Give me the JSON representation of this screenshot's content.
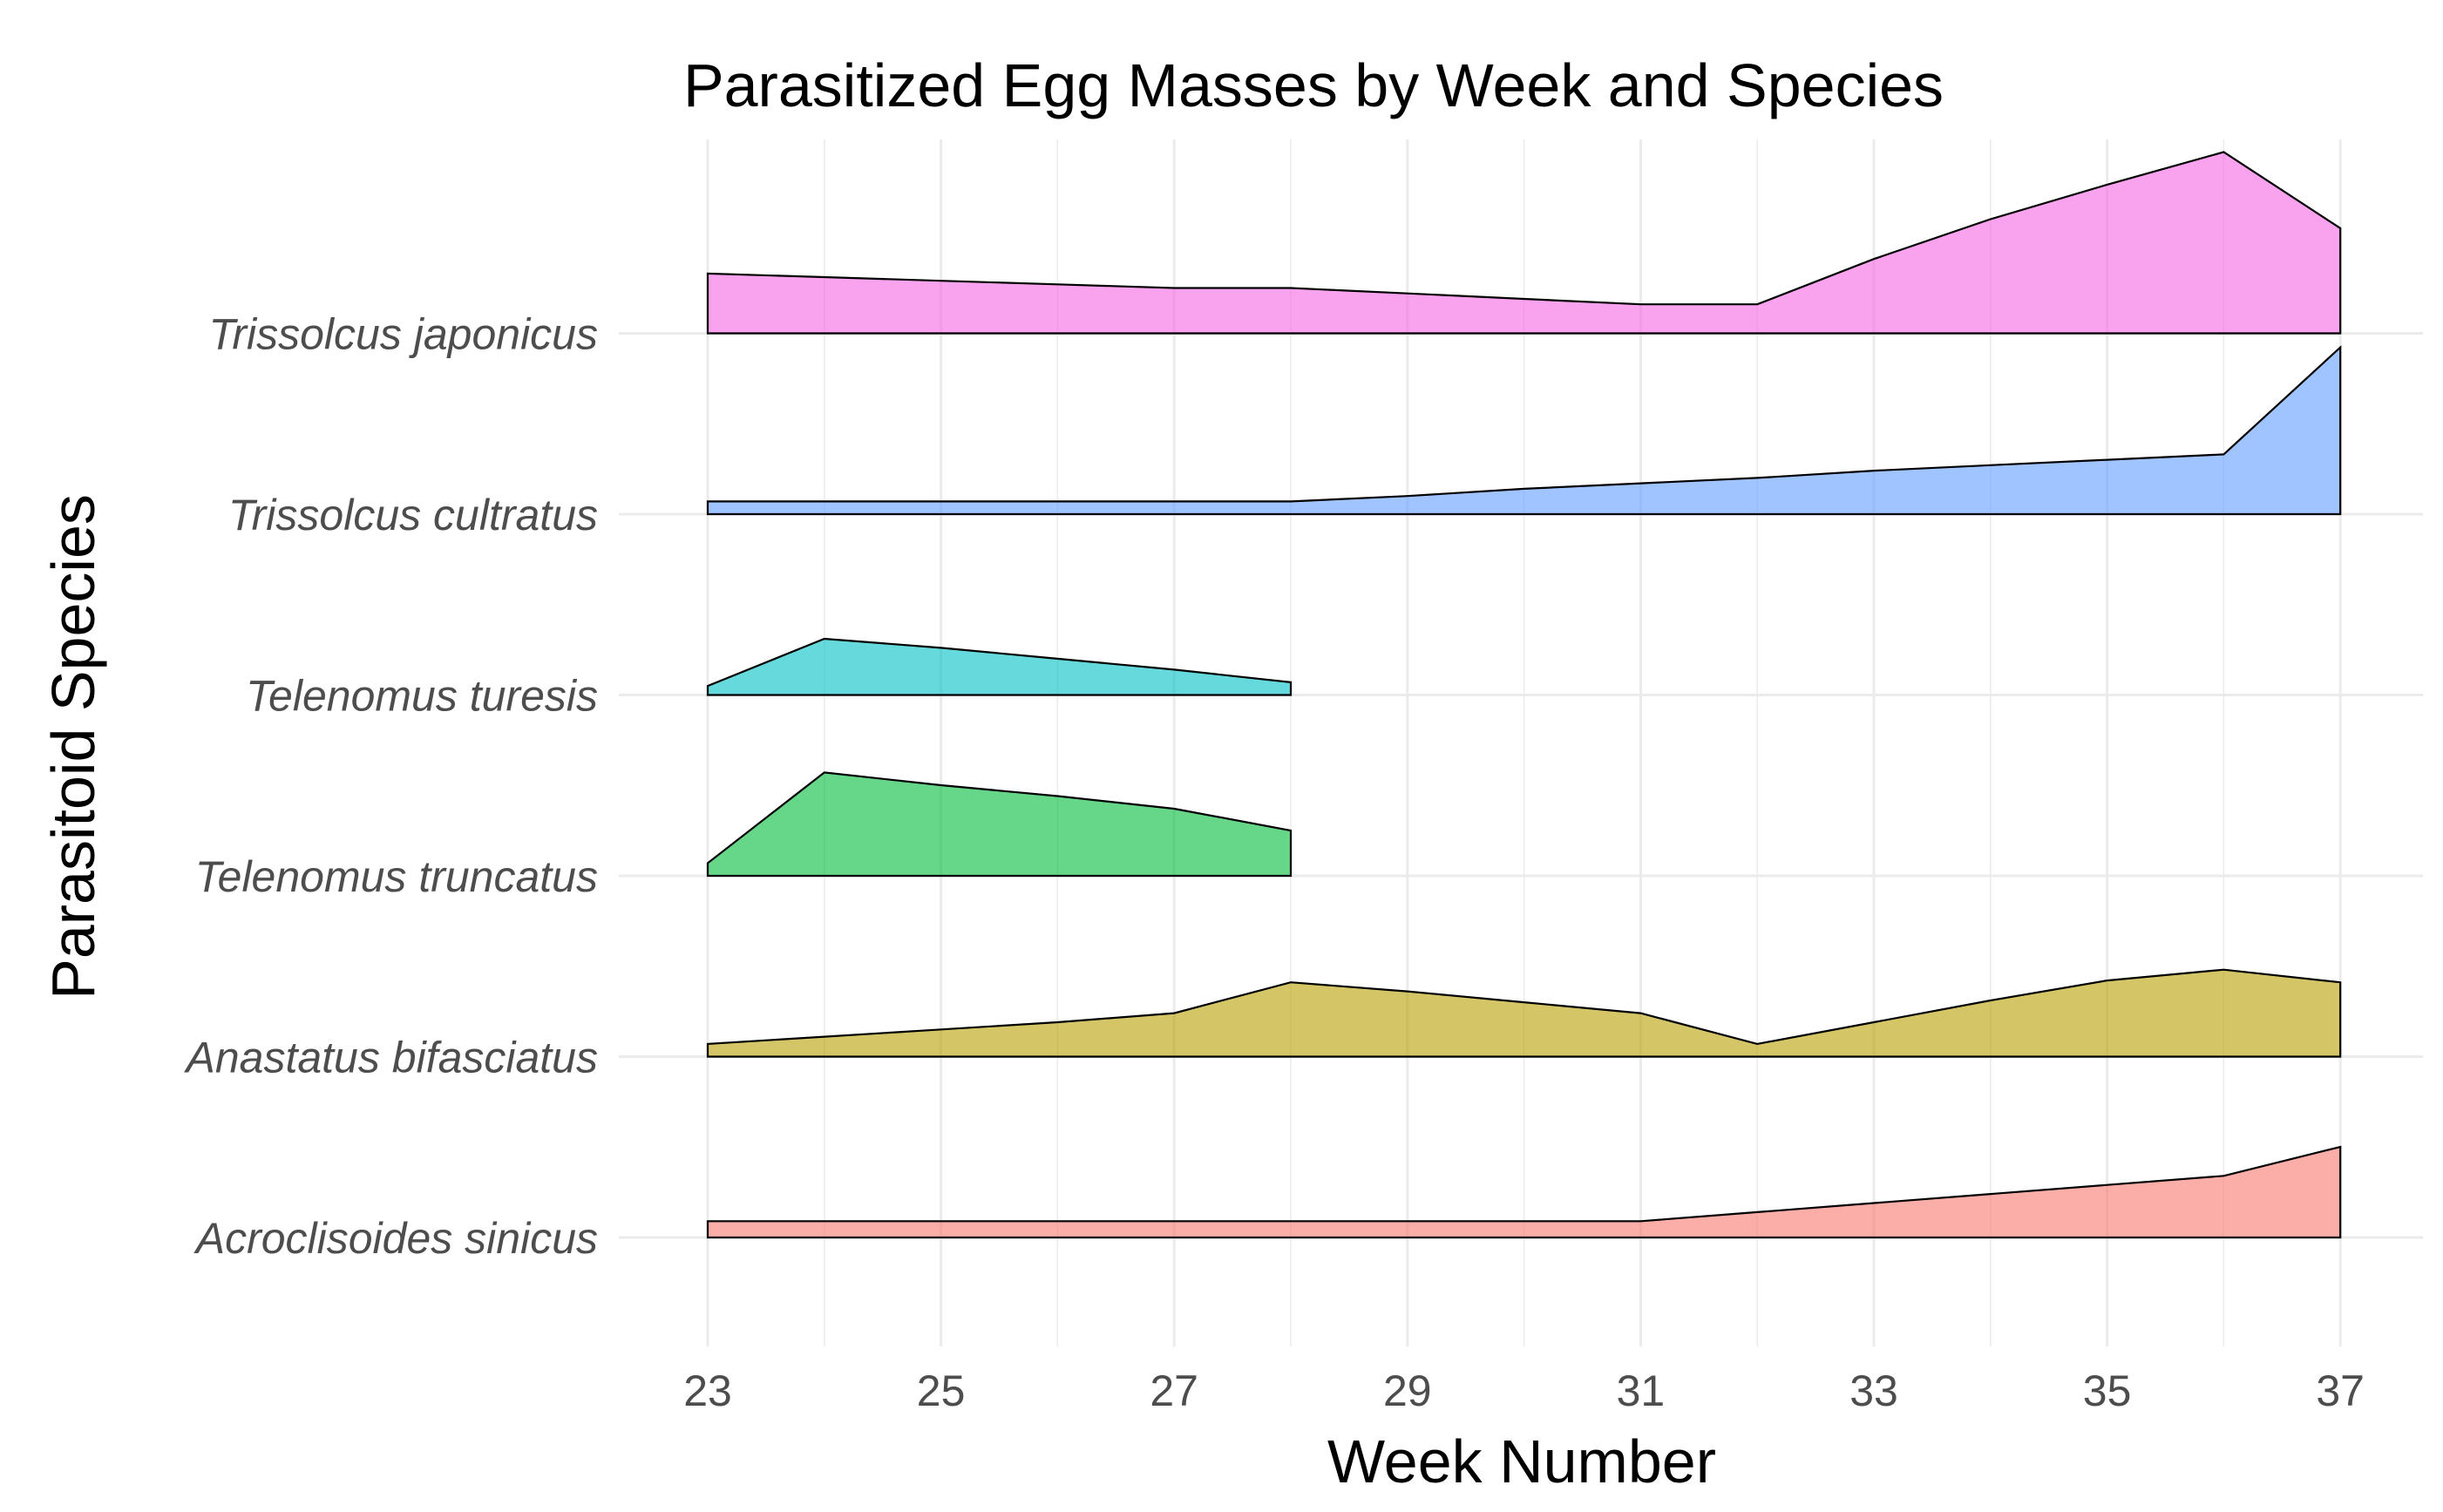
{
  "chart_data": {
    "type": "area",
    "subtype": "ridgeline",
    "title": "Parasitized Egg Masses by Week and Species",
    "xlabel": "Week Number",
    "ylabel": "Parasitoid Species",
    "xlim": [
      22.3,
      37.3
    ],
    "x_ticks": [
      "23",
      "25",
      "27",
      "29",
      "31",
      "33",
      "35",
      "37"
    ],
    "x_tick_values": [
      23,
      25,
      27,
      29,
      31,
      33,
      35,
      37
    ],
    "grid": true,
    "legend": "none",
    "series": [
      {
        "name": "Acroclisoides sinicus",
        "color": "#F8766D",
        "x": [
          23,
          24,
          25,
          26,
          27,
          28,
          29,
          30,
          31,
          32,
          33,
          34,
          35,
          36,
          37
        ],
        "values": [
          0.09,
          0.09,
          0.09,
          0.09,
          0.09,
          0.09,
          0.09,
          0.09,
          0.09,
          0.14,
          0.19,
          0.24,
          0.29,
          0.34,
          0.5
        ]
      },
      {
        "name": "Anastatus bifasciatus",
        "color": "#B79F00",
        "x": [
          23,
          24,
          25,
          26,
          27,
          28,
          29,
          30,
          31,
          32,
          33,
          34,
          35,
          36,
          37
        ],
        "values": [
          0.07,
          0.11,
          0.15,
          0.19,
          0.24,
          0.41,
          0.36,
          0.3,
          0.24,
          0.07,
          0.19,
          0.31,
          0.42,
          0.48,
          0.41
        ]
      },
      {
        "name": "Telenomus truncatus",
        "color": "#00BA38",
        "x": [
          23,
          24,
          25,
          26,
          27,
          28
        ],
        "values": [
          0.07,
          0.57,
          0.5,
          0.44,
          0.37,
          0.25
        ]
      },
      {
        "name": "Telenomus turesis",
        "color": "#00BFC4",
        "x": [
          23,
          24,
          25,
          26,
          27,
          28
        ],
        "values": [
          0.05,
          0.31,
          0.26,
          0.2,
          0.14,
          0.07
        ]
      },
      {
        "name": "Trissolcus cultratus",
        "color": "#619CFF",
        "x": [
          23,
          24,
          25,
          26,
          27,
          28,
          29,
          30,
          31,
          32,
          33,
          34,
          35,
          36,
          37
        ],
        "values": [
          0.07,
          0.07,
          0.07,
          0.07,
          0.07,
          0.07,
          0.1,
          0.14,
          0.17,
          0.2,
          0.24,
          0.27,
          0.3,
          0.33,
          0.92
        ]
      },
      {
        "name": "Trissolcus japonicus",
        "color": "#F564E3",
        "x": [
          23,
          24,
          25,
          26,
          27,
          28,
          29,
          30,
          31,
          32,
          33,
          34,
          35,
          36,
          37
        ],
        "values": [
          0.33,
          0.31,
          0.29,
          0.27,
          0.25,
          0.25,
          0.22,
          0.19,
          0.16,
          0.16,
          0.41,
          0.63,
          0.82,
          1.0,
          0.58
        ]
      }
    ]
  }
}
